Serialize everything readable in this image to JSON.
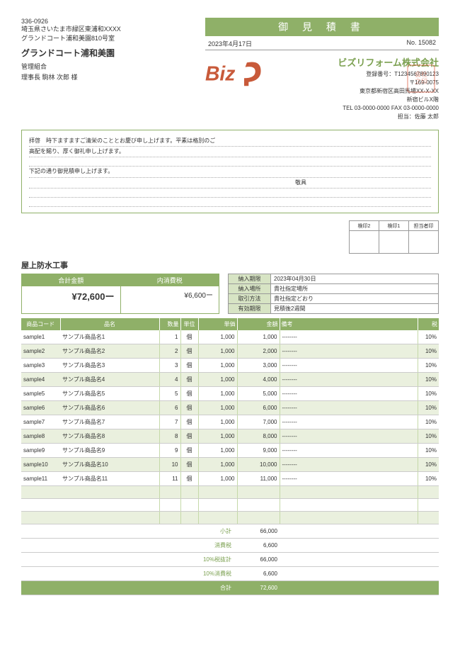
{
  "doc_title": "御 見 積 書",
  "date": "2023年4月17日",
  "doc_no": "No. 15082",
  "client": {
    "zip": "336-0926",
    "addr1": "埼玉県さいたま市緑区東浦和XXXX",
    "addr2": "グランドコート浦和美園810号室",
    "name": "グランドコート浦和美園",
    "role": "管理組合",
    "contact": "理事長 駒林 次郎 様"
  },
  "company": {
    "name": "ビズリフォーム株式会社",
    "reg": "登録番号：T1234567890123",
    "zip": "〒169-0075",
    "addr": "東京都新宿区高田馬場XX-X-XX",
    "bldg": "新宿ビルX階",
    "tel": "TEL 03-0000-0000 FAX 03-0000-0000",
    "rep": "担当：佐藤 太郎"
  },
  "greeting": {
    "l1": "拝啓　時下ますますご清栄のこととお慶び申し上げます。平素は格別のご",
    "l2": "高配を賜り、厚く御礼申し上げます。",
    "l3": "下記の通り御見積申し上げます。",
    "closing": "敬具"
  },
  "stamps": {
    "s1": "検印2",
    "s2": "検印1",
    "s3": "担当者印"
  },
  "section_title": "屋上防水工事",
  "totals": {
    "total_hdr": "合計金額",
    "total_val": "¥72,600ー",
    "tax_hdr": "内消費税",
    "tax_val": "¥6,600ー"
  },
  "delivery": {
    "deadline_l": "納入期限",
    "deadline_v": "2023年04月30日",
    "place_l": "納入場所",
    "place_v": "貴社指定場所",
    "method_l": "取引方法",
    "method_v": "貴社指定どおり",
    "valid_l": "有効期限",
    "valid_v": "見積後2週間"
  },
  "cols": {
    "code": "商品コード",
    "name": "品名",
    "qty": "数量",
    "unit": "単位",
    "price": "単価",
    "amount": "金額",
    "note": "備考",
    "tax": "税"
  },
  "rows": [
    {
      "code": "sample1",
      "name": "サンプル商品名1",
      "qty": "1",
      "unit": "個",
      "price": "1,000",
      "amount": "1,000",
      "note": "--------",
      "tax": "10%"
    },
    {
      "code": "sample2",
      "name": "サンプル商品名2",
      "qty": "2",
      "unit": "個",
      "price": "1,000",
      "amount": "2,000",
      "note": "--------",
      "tax": "10%"
    },
    {
      "code": "sample3",
      "name": "サンプル商品名3",
      "qty": "3",
      "unit": "個",
      "price": "1,000",
      "amount": "3,000",
      "note": "--------",
      "tax": "10%"
    },
    {
      "code": "sample4",
      "name": "サンプル商品名4",
      "qty": "4",
      "unit": "個",
      "price": "1,000",
      "amount": "4,000",
      "note": "--------",
      "tax": "10%"
    },
    {
      "code": "sample5",
      "name": "サンプル商品名5",
      "qty": "5",
      "unit": "個",
      "price": "1,000",
      "amount": "5,000",
      "note": "--------",
      "tax": "10%"
    },
    {
      "code": "sample6",
      "name": "サンプル商品名6",
      "qty": "6",
      "unit": "個",
      "price": "1,000",
      "amount": "6,000",
      "note": "--------",
      "tax": "10%"
    },
    {
      "code": "sample7",
      "name": "サンプル商品名7",
      "qty": "7",
      "unit": "個",
      "price": "1,000",
      "amount": "7,000",
      "note": "--------",
      "tax": "10%"
    },
    {
      "code": "sample8",
      "name": "サンプル商品名8",
      "qty": "8",
      "unit": "個",
      "price": "1,000",
      "amount": "8,000",
      "note": "--------",
      "tax": "10%"
    },
    {
      "code": "sample9",
      "name": "サンプル商品名9",
      "qty": "9",
      "unit": "個",
      "price": "1,000",
      "amount": "9,000",
      "note": "--------",
      "tax": "10%"
    },
    {
      "code": "sample10",
      "name": "サンプル商品名10",
      "qty": "10",
      "unit": "個",
      "price": "1,000",
      "amount": "10,000",
      "note": "--------",
      "tax": "10%"
    },
    {
      "code": "sample11",
      "name": "サンプル商品名11",
      "qty": "11",
      "unit": "個",
      "price": "1,000",
      "amount": "11,000",
      "note": "--------",
      "tax": "10%"
    }
  ],
  "subtotals": [
    {
      "lbl": "小計",
      "val": "66,000"
    },
    {
      "lbl": "消費税",
      "val": "6,600"
    },
    {
      "lbl": "10%税抜計",
      "val": "66,000"
    },
    {
      "lbl": "10%消費税",
      "val": "6,600"
    }
  ],
  "grand": {
    "lbl": "合計",
    "val": "72,600"
  }
}
